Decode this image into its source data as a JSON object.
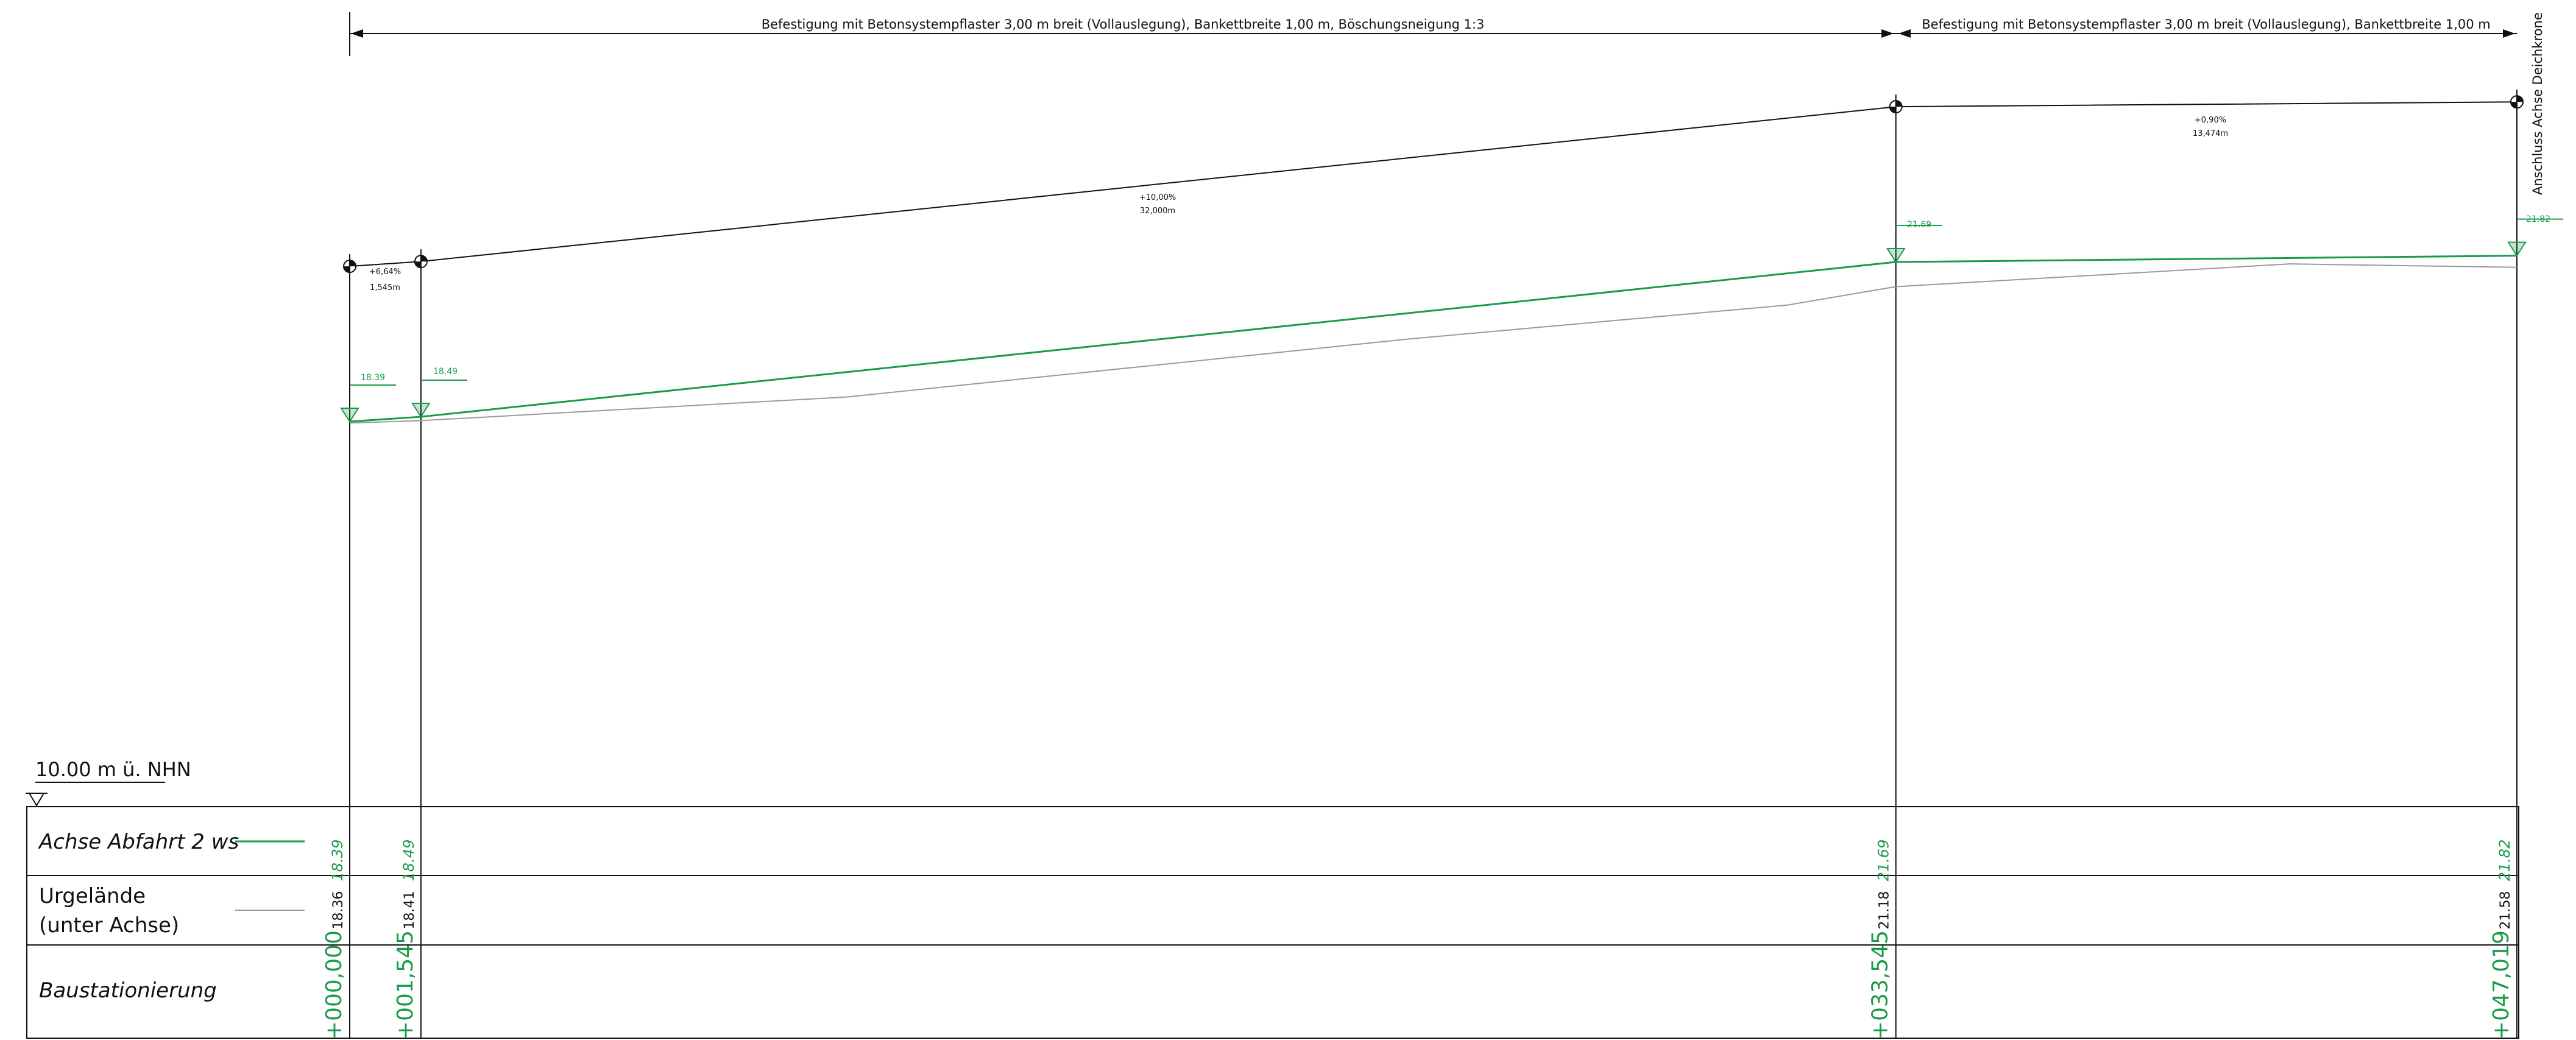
{
  "dimension_bands": [
    {
      "text": "Befestigung mit Betonsystempflaster 3,00 m breit (Vollauslegung), Bankettbreite 1,00 m, Böschungsneigung 1:3"
    },
    {
      "text": "Befestigung mit Betonsystempflaster 3,00 m breit (Vollauslegung), Bankettbreite 1,00 m"
    }
  ],
  "end_note": "Anschluss Achse Deichkrone",
  "grades": [
    {
      "slope": "+6,64%",
      "length": "1,545m"
    },
    {
      "slope": "+10,00%",
      "length": "32,000m"
    },
    {
      "slope": "+0,90%",
      "length": "13,474m"
    }
  ],
  "elevation_tags": [
    "18.39",
    "18.49",
    "21.69",
    "21.82"
  ],
  "datum": {
    "label": "10.00 m ü. NHN",
    "value": 10.0
  },
  "table": {
    "rows": [
      {
        "label": "Achse Abfahrt 2 ws",
        "legend_color": "#1a9a4a",
        "values": [
          "18.39",
          "18.49",
          "21.69",
          "21.82"
        ]
      },
      {
        "label_line1": "Urgelände",
        "label_line2": "(unter Achse)",
        "legend_color": "#9a9a9a",
        "values": [
          "18.36",
          "18.41",
          "21.18",
          "21.58"
        ]
      },
      {
        "label": "Baustationierung",
        "values": [
          "0+000,000",
          "0+001,545",
          "0+033,545",
          "0+047,019"
        ]
      }
    ]
  },
  "chart_data": {
    "type": "line",
    "xlabel": "",
    "ylabel": "",
    "x_stations_m": [
      0.0,
      1.545,
      33.545,
      47.019
    ],
    "series": [
      {
        "name": "Achse Abfahrt 2 ws",
        "color": "#1a9a4a",
        "x": [
          0.0,
          1.545,
          33.545,
          47.019
        ],
        "y": [
          18.39,
          18.49,
          21.69,
          21.82
        ]
      },
      {
        "name": "Urgelände",
        "color": "#9a9a9a",
        "x": [
          0.0,
          1.545,
          10.8,
          23.0,
          31.2,
          33.545,
          42.1,
          47.019
        ],
        "y": [
          18.36,
          18.41,
          18.9,
          20.1,
          20.8,
          21.18,
          21.65,
          21.58
        ]
      }
    ],
    "grade_line": {
      "x": [
        0.0,
        1.545,
        33.545,
        47.019
      ],
      "y": [
        21.6,
        21.7,
        24.9,
        25.0
      ]
    }
  },
  "colors": {
    "axis": "#1a9a4a",
    "terrain": "#9a9a9a",
    "lines": "#111111"
  }
}
